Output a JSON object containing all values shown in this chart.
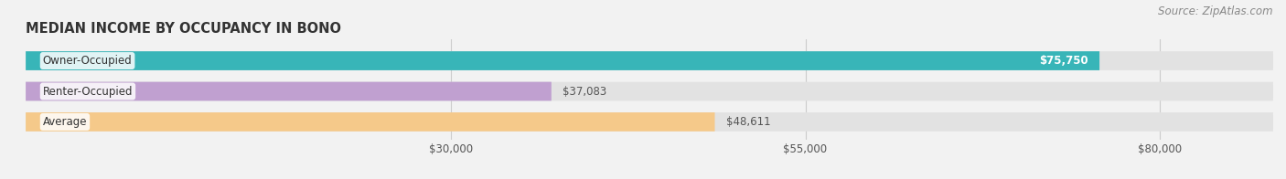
{
  "title": "MEDIAN INCOME BY OCCUPANCY IN BONO",
  "source": "Source: ZipAtlas.com",
  "categories": [
    "Owner-Occupied",
    "Renter-Occupied",
    "Average"
  ],
  "values": [
    75750,
    37083,
    48611
  ],
  "bar_colors": [
    "#38b5b8",
    "#c0a0d0",
    "#f5c98a"
  ],
  "bar_labels": [
    "$75,750",
    "$37,083",
    "$48,611"
  ],
  "label_color_inside": [
    "#ffffff",
    "#555555",
    "#555555"
  ],
  "background_color": "#f2f2f2",
  "bar_bg_color": "#e2e2e2",
  "xlim": [
    0,
    88000
  ],
  "xticks": [
    30000,
    55000,
    80000
  ],
  "xtick_labels": [
    "$30,000",
    "$55,000",
    "$80,000"
  ],
  "title_fontsize": 10.5,
  "tick_fontsize": 8.5,
  "source_fontsize": 8.5,
  "label_fontsize": 8.5,
  "cat_fontsize": 8.5
}
